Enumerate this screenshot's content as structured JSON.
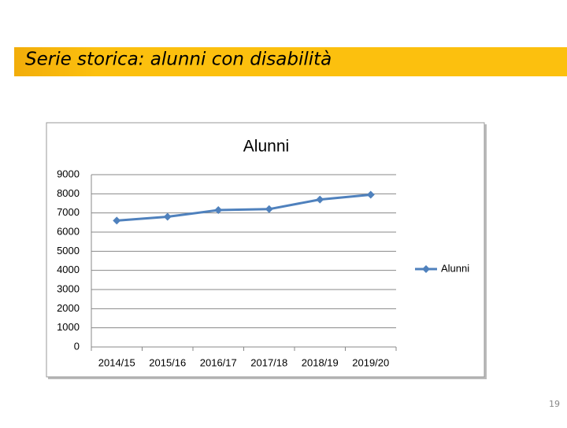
{
  "slide_title": "Serie storica: alunni con disabilità",
  "page_number": "19",
  "chart_data": {
    "type": "line",
    "title": "Alunni",
    "categories": [
      "2014/15",
      "2015/16",
      "2016/17",
      "2017/18",
      "2018/19",
      "2019/20"
    ],
    "series": [
      {
        "name": "Alunni",
        "color": "#4f81bd",
        "values": [
          6600,
          6800,
          7150,
          7200,
          7700,
          7950
        ]
      }
    ],
    "ylim": [
      0,
      9000
    ],
    "yticks": [
      0,
      1000,
      2000,
      3000,
      4000,
      5000,
      6000,
      7000,
      8000,
      9000
    ],
    "grid": true,
    "legend": "right"
  }
}
